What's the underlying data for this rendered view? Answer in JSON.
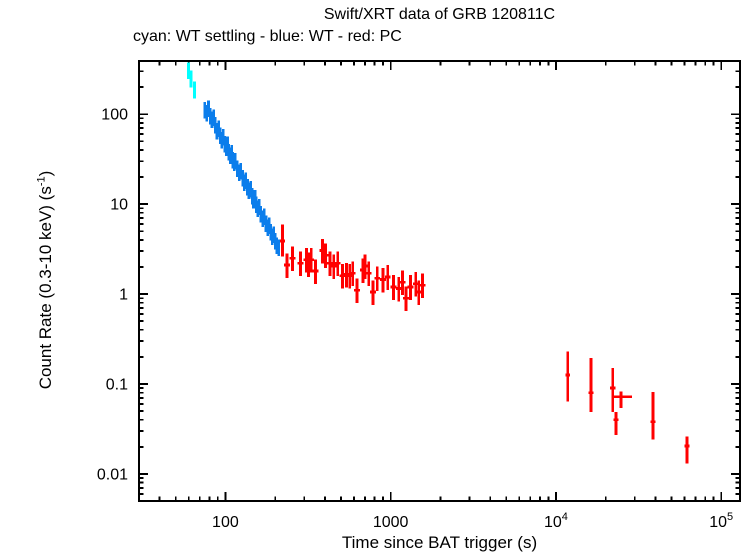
{
  "labels": {
    "title": "Swift/XRT data of GRB 120811C",
    "subtitle": "cyan: WT settling - blue: WT - red: PC",
    "xlabel": "Time since BAT trigger (s)",
    "ylabel_pre": "Count Rate (0.3-10 keV) (s",
    "ylabel_sup": "-1",
    "ylabel_post": ")"
  },
  "colors": {
    "background": "#ffffff",
    "axis": "#000000",
    "wt_settling": "#00ffff",
    "wt": "#0b7deb",
    "pc": "#ff0000"
  },
  "chart_data": {
    "type": "scatter",
    "title": "Swift/XRT data of GRB 120811C",
    "subtitle": "cyan: WT settling - blue: WT - red: PC",
    "xlabel": "Time since BAT trigger (s)",
    "ylabel": "Count Rate (0.3-10 keV) (s^-1)",
    "xscale": "log",
    "yscale": "log",
    "grid": false,
    "legend_position": "subtitle-text",
    "xlim": [
      30,
      130000
    ],
    "ylim": [
      0.005,
      390
    ],
    "xticks": [
      {
        "v": 100,
        "label": "100"
      },
      {
        "v": 1000,
        "label": "1000"
      },
      {
        "v": 10000,
        "label": "10^4"
      },
      {
        "v": 100000,
        "label": "10^5"
      }
    ],
    "yticks": [
      {
        "v": 100,
        "label": "100"
      },
      {
        "v": 10,
        "label": "10"
      },
      {
        "v": 1,
        "label": "1"
      },
      {
        "v": 0.1,
        "label": "0.1"
      },
      {
        "v": 0.01,
        "label": "0.01"
      }
    ],
    "point_format": "[t_s, rate] expanded with series error factors, or explicit [t_s, rate, rate_lo, rate_hi, t_lo, t_hi]",
    "series": [
      {
        "name": "WT settling",
        "color": "#00ffff",
        "stroke_width": 3,
        "t_err_factor": [
          0.985,
          1.015
        ],
        "rate_err_factor": [
          0.79,
          1.21
        ],
        "points": [
          [
            60,
            310
          ],
          [
            62,
            252
          ],
          [
            65,
            190
          ]
        ]
      },
      {
        "name": "WT",
        "color": "#0b7deb",
        "stroke_width": 2.6,
        "t_err_factor": [
          0.985,
          1.015
        ],
        "rate_err_factor": [
          0.8,
          1.22
        ],
        "points": [
          [
            75,
            112
          ],
          [
            77,
            104
          ],
          [
            79,
            116
          ],
          [
            81,
            96
          ],
          [
            83,
            88
          ],
          [
            85,
            92
          ],
          [
            87,
            76
          ],
          [
            89,
            65
          ],
          [
            91,
            70
          ],
          [
            93,
            58
          ],
          [
            95,
            52
          ],
          [
            97,
            56
          ],
          [
            99,
            47
          ],
          [
            101,
            43
          ],
          [
            103,
            46
          ],
          [
            105,
            38
          ],
          [
            107,
            35
          ],
          [
            109,
            37
          ],
          [
            111,
            31
          ],
          [
            113,
            29
          ],
          [
            115,
            30.5
          ],
          [
            118,
            25
          ],
          [
            121,
            22.5
          ],
          [
            124,
            23.5
          ],
          [
            127,
            19.5
          ],
          [
            130,
            17.5
          ],
          [
            133,
            18.5
          ],
          [
            136,
            15.5
          ],
          [
            139,
            14.2
          ],
          [
            142,
            14.8
          ],
          [
            145,
            12.4
          ],
          [
            148,
            11.2
          ],
          [
            151,
            11.8
          ],
          [
            154,
            9.9
          ],
          [
            157,
            9.0
          ],
          [
            160,
            9.4
          ],
          [
            164,
            7.8
          ],
          [
            168,
            7.0
          ],
          [
            172,
            7.3
          ],
          [
            176,
            6.1
          ],
          [
            180,
            5.5
          ],
          [
            184,
            5.8
          ],
          [
            188,
            4.9
          ],
          [
            192,
            4.4
          ],
          [
            196,
            4.6
          ],
          [
            200,
            3.9
          ],
          [
            205,
            3.5
          ],
          [
            210,
            3.3
          ]
        ]
      },
      {
        "name": "PC",
        "color": "#ff0000",
        "stroke_width": 2.8,
        "t_err_factor": [
          0.96,
          1.04
        ],
        "rate_err_factor": [
          0.72,
          1.35
        ],
        "points": [
          [
            222,
            3.9,
            2.6,
            5.9,
            214,
            230
          ],
          [
            236,
            2.1
          ],
          [
            255,
            2.5
          ],
          [
            285,
            2.2
          ],
          [
            310,
            2.4
          ],
          [
            318,
            2.15
          ],
          [
            331,
            2.4
          ],
          [
            351,
            1.8
          ],
          [
            387,
            3.05
          ],
          [
            404,
            2.7
          ],
          [
            430,
            2.2
          ],
          [
            452,
            2.05
          ],
          [
            478,
            2.2
          ],
          [
            512,
            1.6
          ],
          [
            540,
            1.65
          ],
          [
            565,
            1.6
          ],
          [
            590,
            1.7
          ],
          [
            626,
            1.1
          ],
          [
            679,
            1.85
          ],
          [
            700,
            2.05
          ],
          [
            736,
            1.7
          ],
          [
            782,
            1.05
          ],
          [
            830,
            1.5
          ],
          [
            900,
            1.45
          ],
          [
            960,
            1.55
          ],
          [
            1040,
            1.2
          ],
          [
            1120,
            1.15
          ],
          [
            1180,
            1.35
          ],
          [
            1240,
            0.9
          ],
          [
            1320,
            1.2
          ],
          [
            1420,
            1.3
          ],
          [
            1480,
            1.05
          ],
          [
            1560,
            1.25
          ],
          [
            11800,
            0.126,
            0.064,
            0.23,
            11400,
            12200
          ],
          [
            16300,
            0.08,
            0.049,
            0.195,
            15700,
            16900
          ],
          [
            22100,
            0.09,
            0.049,
            0.151,
            21300,
            22900
          ],
          [
            24800,
            0.072,
            0.054,
            0.082,
            22200,
            28900
          ],
          [
            23100,
            0.04,
            0.027,
            0.049,
            22300,
            23900
          ],
          [
            38700,
            0.038,
            0.024,
            0.081,
            37400,
            40000
          ],
          [
            62200,
            0.0205,
            0.013,
            0.026,
            60200,
            64300
          ]
        ]
      }
    ]
  }
}
